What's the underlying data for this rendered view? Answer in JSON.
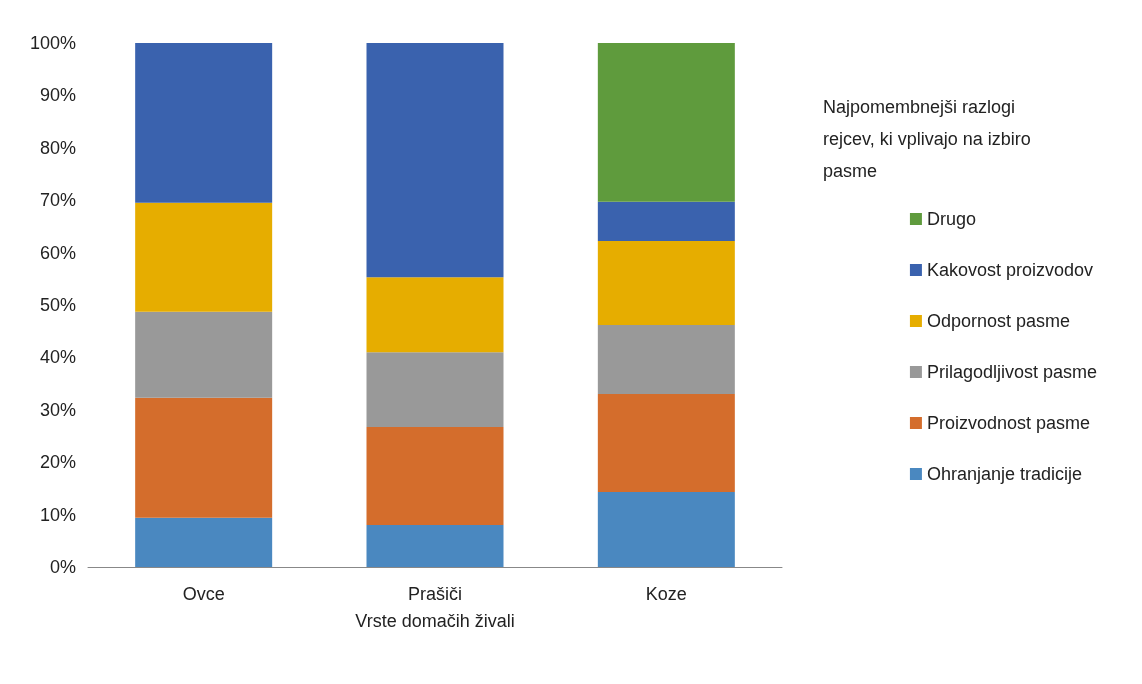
{
  "chart_data": {
    "type": "bar",
    "stacked": true,
    "xlabel": "Vrste domačih živali",
    "legend_title": "Najpomembnejši razlogi\nrejcev, ki vplivajo na izbiro\npasme",
    "categories": [
      "Ovce",
      "Prašiči",
      "Koze"
    ],
    "series": [
      {
        "name": "Ohranjanje tradicije",
        "color": "#4a88c0",
        "values": [
          9.4,
          8.0,
          14.3
        ]
      },
      {
        "name": "Proizvodnost pasme",
        "color": "#d46d2c",
        "values": [
          22.9,
          18.7,
          18.7
        ]
      },
      {
        "name": "Prilagodljivost pasme",
        "color": "#999999",
        "values": [
          16.4,
          14.3,
          13.2
        ]
      },
      {
        "name": "Odpornost pasme",
        "color": "#e6ad00",
        "values": [
          20.8,
          14.3,
          16.0
        ]
      },
      {
        "name": "Kakovost proizvodov",
        "color": "#3a62ae",
        "values": [
          30.5,
          44.7,
          7.5
        ]
      },
      {
        "name": "Drugo",
        "color": "#5f9b3d",
        "values": [
          0,
          0,
          30.3
        ]
      }
    ],
    "ylim": [
      0,
      100
    ],
    "yticks": [
      {
        "value": 0,
        "label": "0%"
      },
      {
        "value": 10,
        "label": "10%"
      },
      {
        "value": 20,
        "label": "20%"
      },
      {
        "value": 30,
        "label": "30%"
      },
      {
        "value": 40,
        "label": "40%"
      },
      {
        "value": 50,
        "label": "50%"
      },
      {
        "value": 60,
        "label": "60%"
      },
      {
        "value": 70,
        "label": "70%"
      },
      {
        "value": 80,
        "label": "80%"
      },
      {
        "value": 90,
        "label": "90%"
      },
      {
        "value": 100,
        "label": "100%"
      }
    ],
    "grid": false,
    "legend": "right"
  }
}
